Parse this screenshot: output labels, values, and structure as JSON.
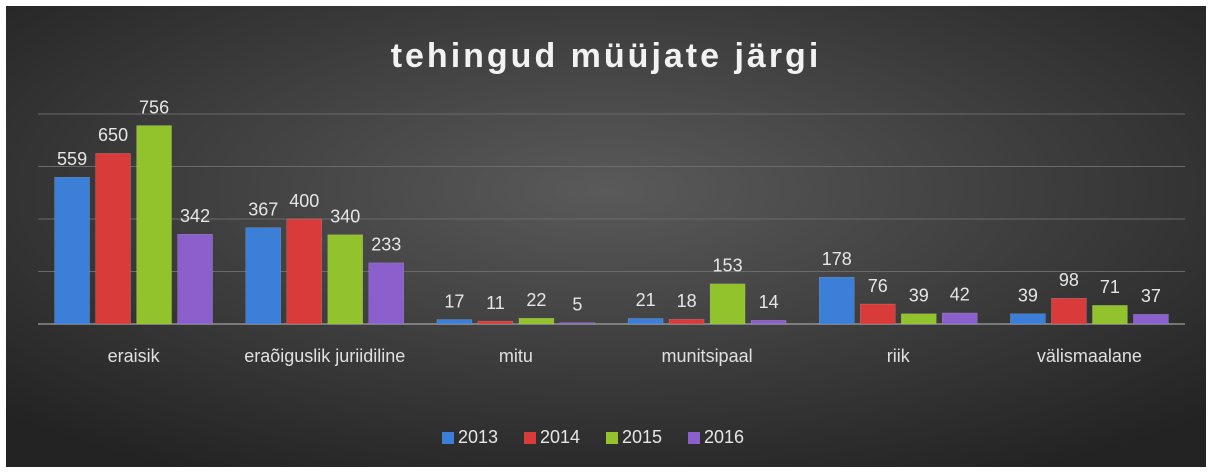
{
  "chart_data": {
    "type": "bar",
    "title": "tehingud müüjate järgi",
    "categories": [
      "eraisik",
      "eraõiguslik juriidiline",
      "mitu",
      "munitsipaal",
      "riik",
      "välismaalane"
    ],
    "series": [
      {
        "name": "2013",
        "color": "#3b7fd9",
        "values": [
          559,
          367,
          17,
          21,
          178,
          39
        ]
      },
      {
        "name": "2014",
        "color": "#d93b3b",
        "values": [
          650,
          400,
          11,
          18,
          76,
          98
        ]
      },
      {
        "name": "2015",
        "color": "#92c22c",
        "values": [
          756,
          340,
          22,
          153,
          39,
          71
        ]
      },
      {
        "name": "2016",
        "color": "#8b5fcc",
        "values": [
          342,
          233,
          5,
          14,
          42,
          37
        ]
      }
    ],
    "ylim": [
      0,
      800
    ],
    "yticks": [
      0,
      200,
      400,
      600,
      800
    ],
    "grid": true,
    "legend": "bottom"
  }
}
